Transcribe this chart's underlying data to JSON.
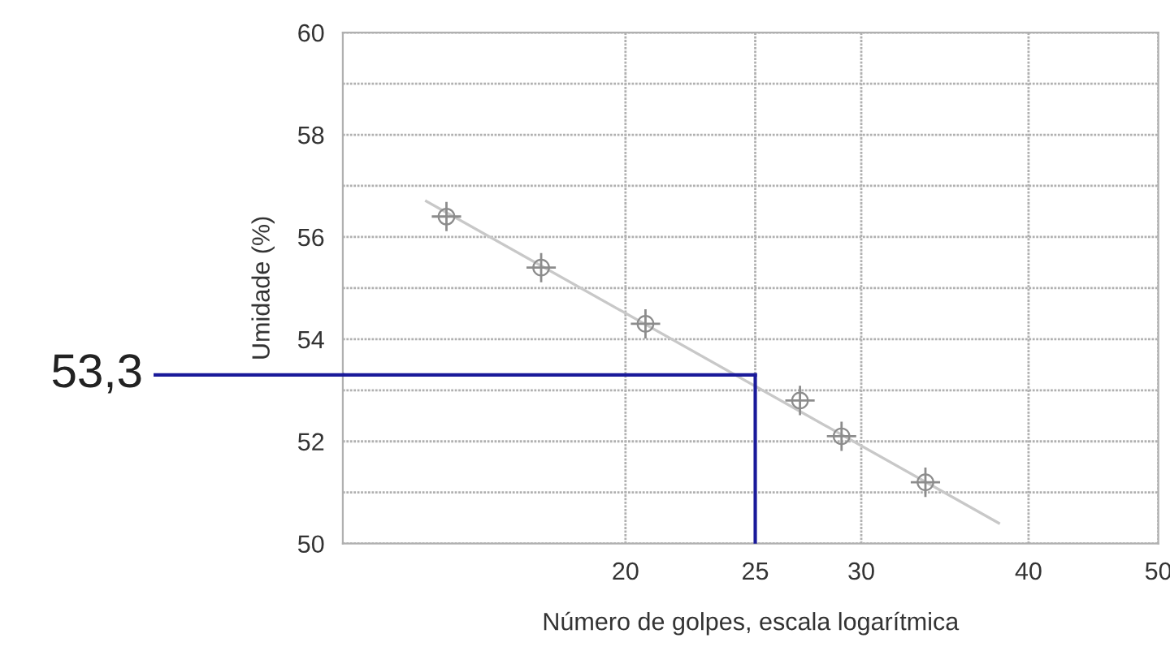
{
  "chart_data": {
    "type": "scatter",
    "xlabel": "Número de golpes, escala logarítmica",
    "ylabel": "Umidade (%)",
    "log": "x",
    "xlim": [
      12.3,
      50
    ],
    "xticks": [
      20,
      25,
      30,
      40,
      50
    ],
    "ylim": [
      50,
      60
    ],
    "yticks": [
      50,
      {
        "value": 51,
        "label": null
      },
      52,
      {
        "value": 53,
        "label": null
      },
      54,
      {
        "value": 55,
        "label": null
      },
      56,
      {
        "value": 57,
        "label": null
      },
      58,
      {
        "value": 59,
        "label": null
      },
      60
    ],
    "grid": true,
    "series": [
      {
        "color": "#8c8c8c",
        "marker": "cross",
        "x": [
          14.7,
          17.3,
          20.7,
          27,
          29,
          33.5
        ],
        "values": [
          56.4,
          55.4,
          54.3,
          52.8,
          52.1,
          51.2
        ]
      },
      {
        "type": "line",
        "color": "#c8c8c8",
        "x": [
          14.2,
          38
        ],
        "values": [
          56.7,
          50.4
        ]
      }
    ],
    "ref_lines": [
      {
        "axis": "y",
        "value": 53.3,
        "label": "53,3",
        "color": "#1a1a9a"
      },
      {
        "axis": "x",
        "value": 25,
        "color": "#1a1a9a"
      }
    ]
  }
}
